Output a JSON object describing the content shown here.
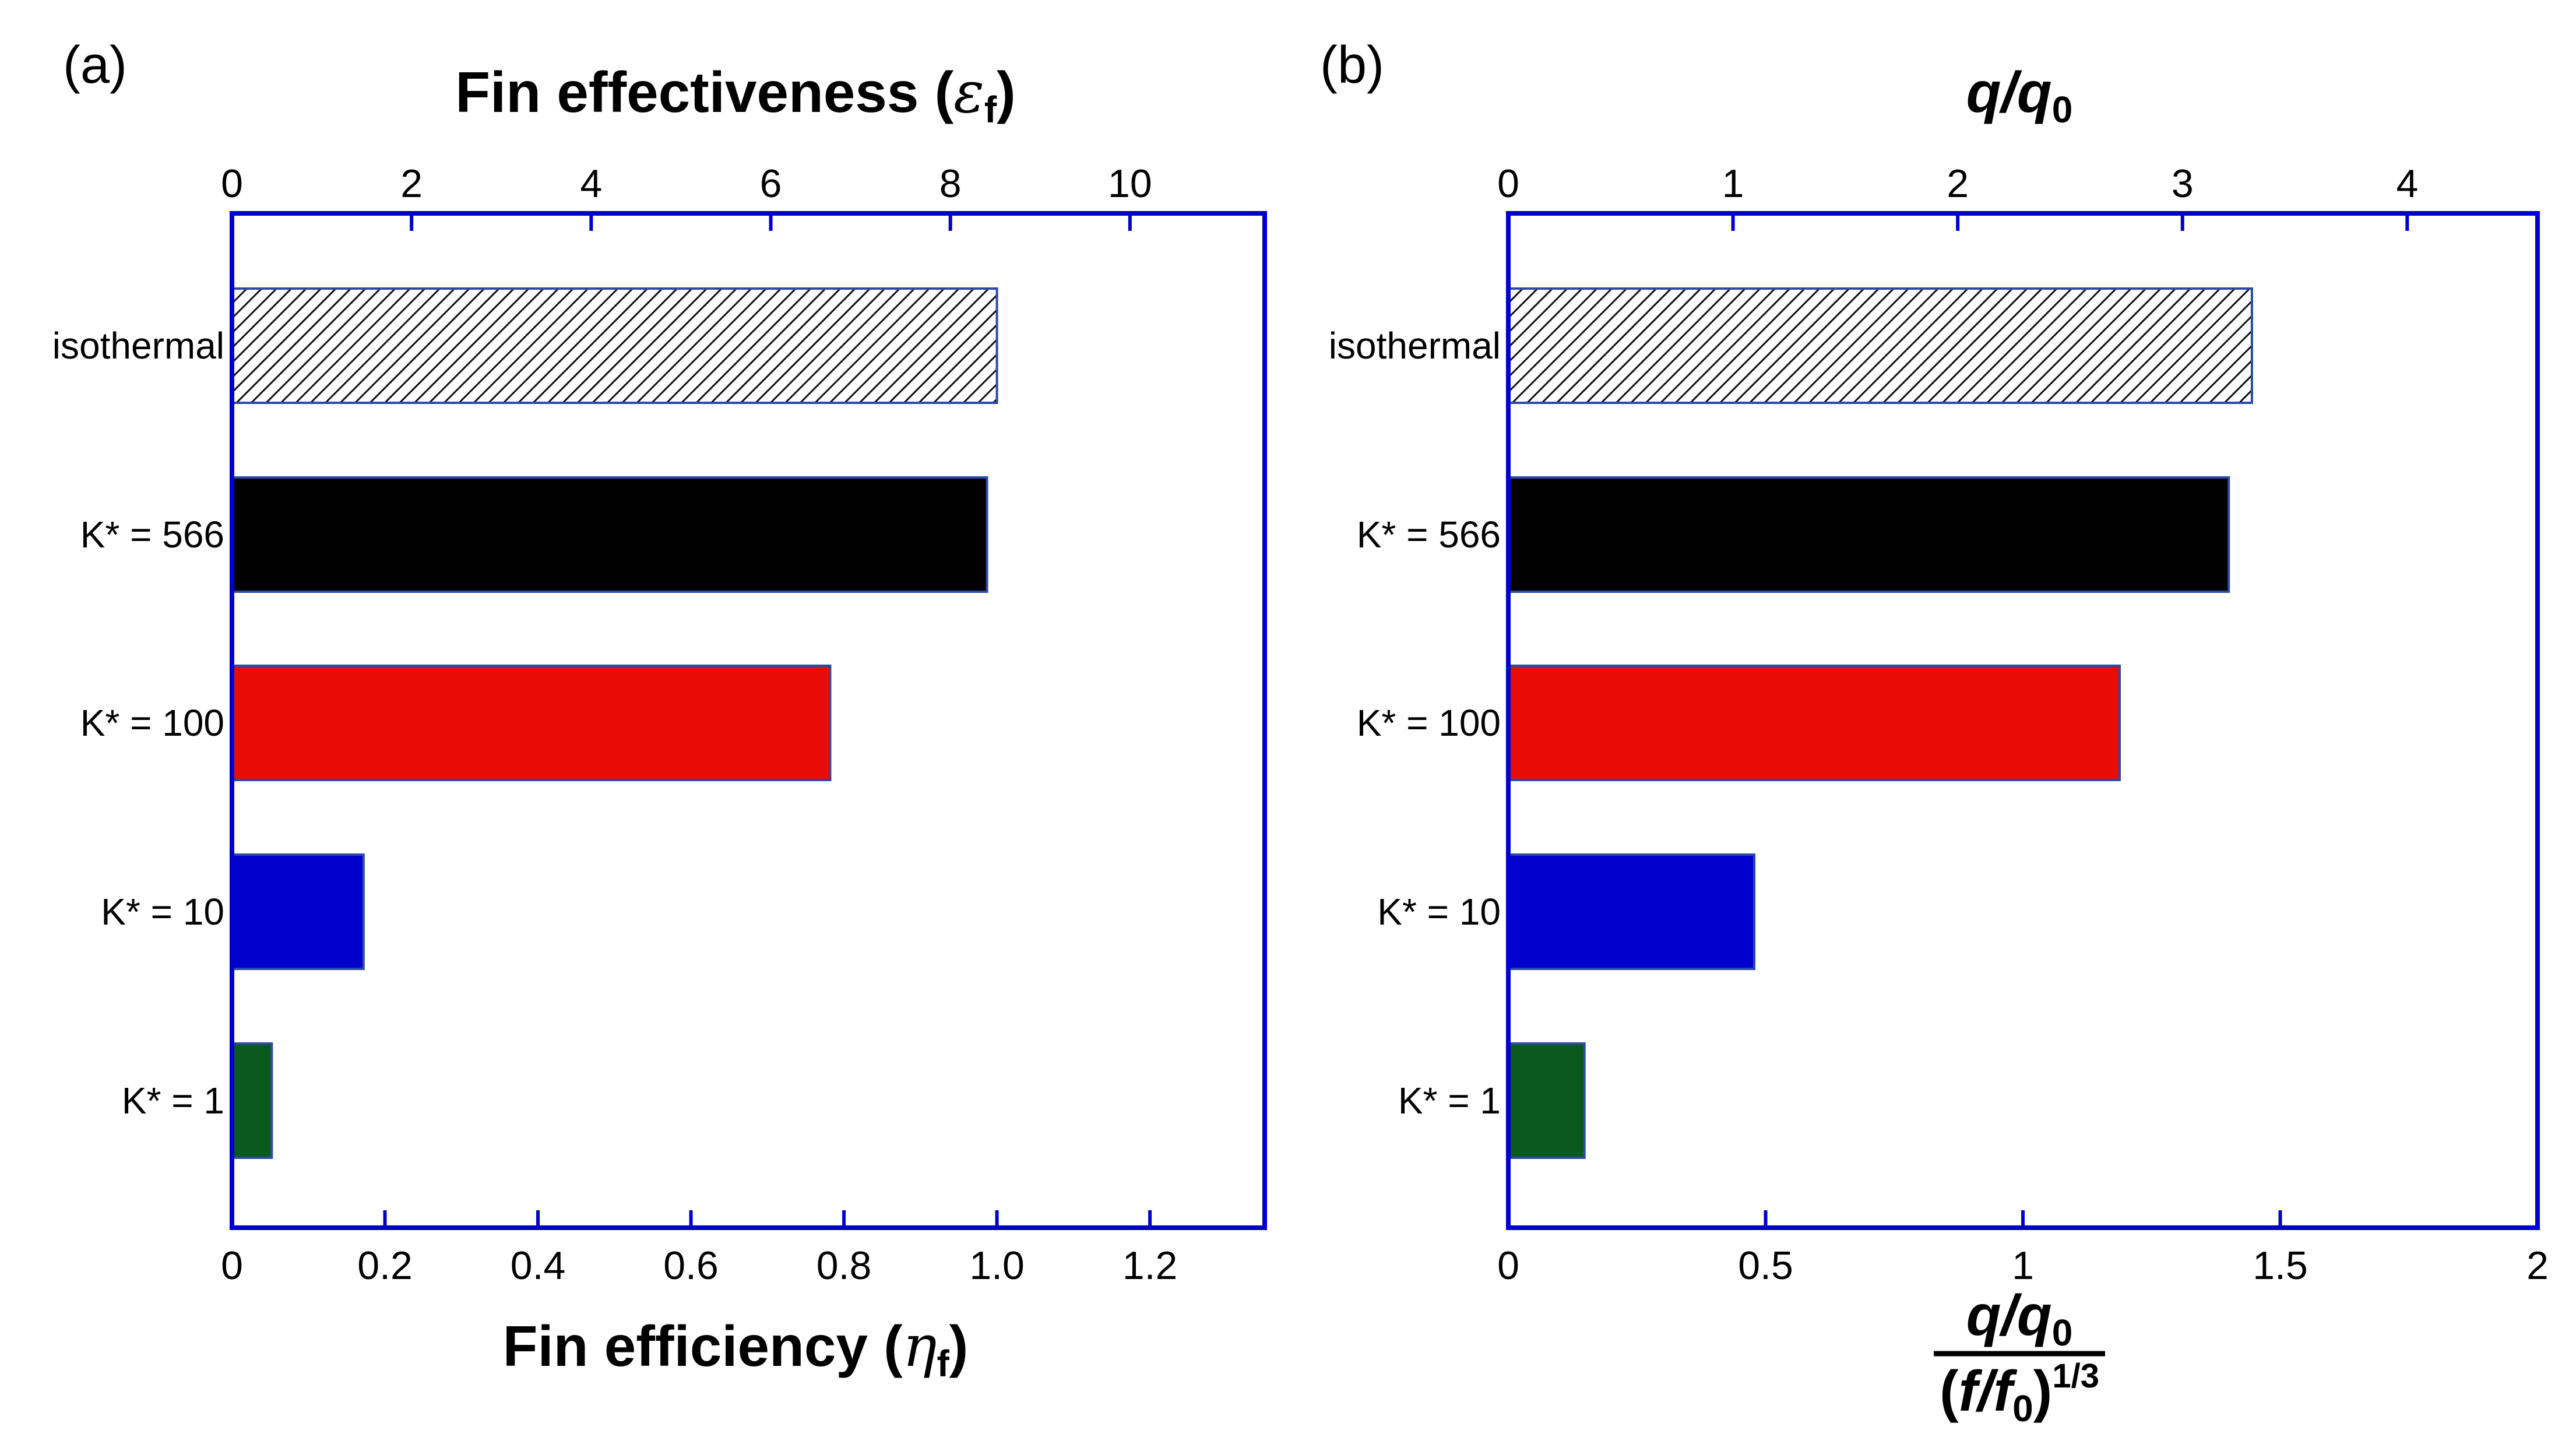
{
  "chart_data": [
    {
      "type": "bar",
      "orientation": "horizontal",
      "panel_label": "(a)",
      "top_axis": {
        "title": "Fin effectiveness",
        "symbol": "ε",
        "subscript": "f",
        "range": [
          0,
          11.5
        ],
        "ticks": [
          0,
          2,
          4,
          6,
          8,
          10
        ],
        "tick_labels": [
          "0",
          "2",
          "4",
          "6",
          "8",
          "10"
        ]
      },
      "bottom_axis": {
        "title": "Fin efficiency",
        "symbol": "η",
        "subscript": "f",
        "range": [
          0,
          1.35
        ],
        "ticks": [
          0,
          0.2,
          0.4,
          0.6,
          0.8,
          1.0,
          1.2
        ],
        "tick_labels": [
          "0",
          "0.2",
          "0.4",
          "0.6",
          "0.8",
          "1.0",
          "1.2"
        ]
      },
      "categories": [
        "isothermal",
        "K* = 566",
        "K* = 100",
        "K* = 10",
        "K* = 1"
      ],
      "values": [
        1.0,
        0.987,
        0.782,
        0.172,
        0.052
      ],
      "value_axis": "bottom"
    },
    {
      "type": "bar",
      "orientation": "horizontal",
      "panel_label": "(b)",
      "top_axis": {
        "title_num": "q",
        "title_sep": "/",
        "title_den": "q",
        "title_sub": "0",
        "range": [
          0,
          4.58
        ],
        "ticks": [
          0,
          1,
          2,
          3,
          4
        ],
        "tick_labels": [
          "0",
          "1",
          "2",
          "3",
          "4"
        ]
      },
      "bottom_axis": {
        "frac_num": {
          "a": "q",
          "sep": "/",
          "b": "q",
          "sub": "0"
        },
        "frac_den": {
          "open": "(",
          "a": "f",
          "sep": "/",
          "b": "f",
          "sub": "0",
          "close": ")",
          "exp": "1/3"
        },
        "range": [
          0,
          2
        ],
        "ticks": [
          0,
          0.5,
          1,
          1.5,
          2
        ],
        "tick_labels": [
          "0",
          "0.5",
          "1",
          "1.5",
          "2"
        ]
      },
      "categories": [
        "isothermal",
        "K* = 566",
        "K* = 100",
        "K* = 10",
        "K* = 1"
      ],
      "values": [
        1.445,
        1.4,
        1.188,
        0.478,
        0.148
      ],
      "value_axis": "bottom"
    }
  ],
  "colors": {
    "axis": "#0000cc",
    "bar_edge": "#2b4aa8",
    "hatch_line": "#111111",
    "isothermal_bg": "#ffffff",
    "k566": "#000000",
    "k100": "#e80c04",
    "k10": "#0000cc",
    "k1": "#0a5a1e"
  }
}
